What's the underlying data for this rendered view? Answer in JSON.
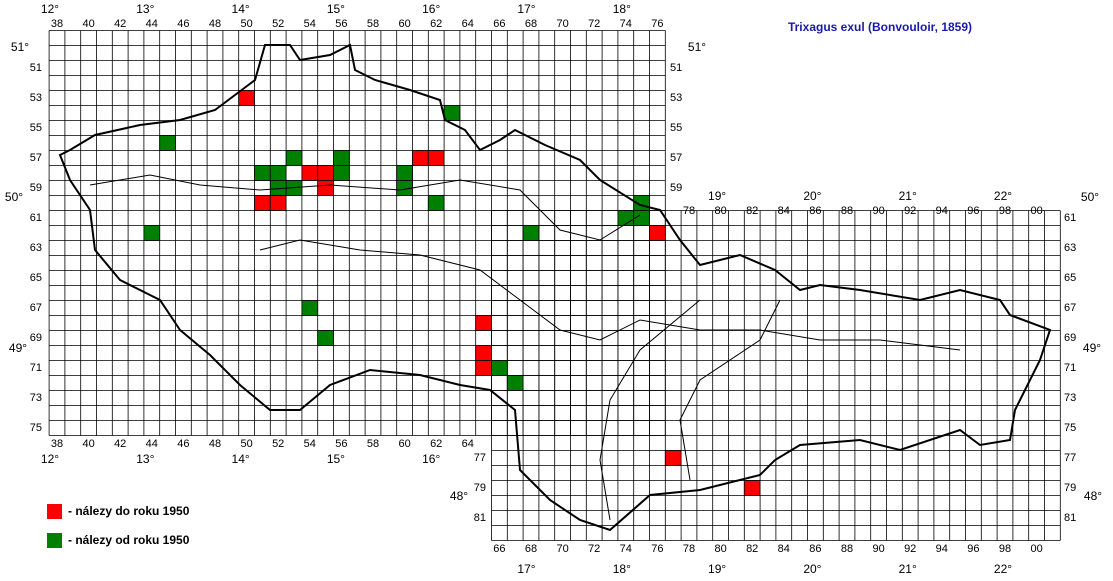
{
  "title": "Trixagus exul (Bonvouloir, 1859)",
  "legend": [
    {
      "label": "- nálezy do roku 1950",
      "color": "#ff0000"
    },
    {
      "label": "- nálezy od roku 1950",
      "color": "#008000"
    }
  ],
  "grid_labels": {
    "top_cols_cz": [
      "38",
      "40",
      "42",
      "44",
      "46",
      "48",
      "50",
      "52",
      "54",
      "56",
      "58",
      "60",
      "62",
      "64",
      "66",
      "68",
      "70",
      "72",
      "74",
      "76"
    ],
    "bottom_cols_cz": [
      "38",
      "40",
      "42",
      "44",
      "46",
      "48",
      "50",
      "52",
      "54",
      "56",
      "58",
      "60",
      "62",
      "64"
    ],
    "top_cols_sk": [
      "78",
      "80",
      "82",
      "84",
      "86",
      "88",
      "90",
      "92",
      "94",
      "96",
      "98",
      "00"
    ],
    "bottom_cols_sk": [
      "66",
      "68",
      "70",
      "72",
      "74",
      "76",
      "78",
      "80",
      "82",
      "84",
      "86",
      "88",
      "90",
      "92",
      "94",
      "96",
      "98",
      "00"
    ],
    "left_rows_cz": [
      "51",
      "53",
      "55",
      "57",
      "59",
      "61",
      "63",
      "65",
      "67",
      "69",
      "71",
      "73",
      "75"
    ],
    "right_rows_cz": [
      "51",
      "53",
      "55",
      "57",
      "59"
    ],
    "right_rows_sk": [
      "61",
      "63",
      "65",
      "67",
      "69",
      "71",
      "73",
      "75",
      "77",
      "79",
      "81"
    ],
    "left_rows_sk": [
      "77",
      "79",
      "81"
    ]
  },
  "degree_labels": {
    "top_cz": [
      "12°",
      "13°",
      "14°",
      "15°",
      "16°",
      "17°",
      "18°"
    ],
    "top_sk": [
      "19°",
      "20°",
      "21°",
      "22°"
    ],
    "bottom_cz": [
      "12°",
      "13°",
      "14°",
      "15°",
      "16°"
    ],
    "bottom_sk": [
      "17°",
      "18°",
      "19°",
      "20°",
      "21°",
      "22°"
    ],
    "lat_left": [
      "51°",
      "50°",
      "49°",
      "48°"
    ],
    "lat_right": [
      "51°",
      "50°",
      "49°",
      "48°"
    ]
  },
  "records": {
    "before_1950": [
      [
        50,
        53
      ],
      [
        54,
        58
      ],
      [
        55,
        58
      ],
      [
        55,
        59
      ],
      [
        51,
        60
      ],
      [
        52,
        60
      ],
      [
        61,
        57
      ],
      [
        62,
        57
      ],
      [
        76,
        62
      ],
      [
        65,
        68
      ],
      [
        65,
        70
      ],
      [
        65,
        71
      ],
      [
        77,
        77
      ],
      [
        82,
        79
      ]
    ],
    "since_1950": [
      [
        45,
        56
      ],
      [
        51,
        58
      ],
      [
        52,
        58
      ],
      [
        52,
        59
      ],
      [
        53,
        59
      ],
      [
        53,
        57
      ],
      [
        56,
        57
      ],
      [
        56,
        58
      ],
      [
        60,
        58
      ],
      [
        60,
        59
      ],
      [
        63,
        54
      ],
      [
        62,
        60
      ],
      [
        68,
        62
      ],
      [
        44,
        62
      ],
      [
        54,
        67
      ],
      [
        55,
        69
      ],
      [
        66,
        71
      ],
      [
        67,
        72
      ],
      [
        74,
        61
      ],
      [
        75,
        61
      ],
      [
        75,
        60
      ]
    ]
  }
}
